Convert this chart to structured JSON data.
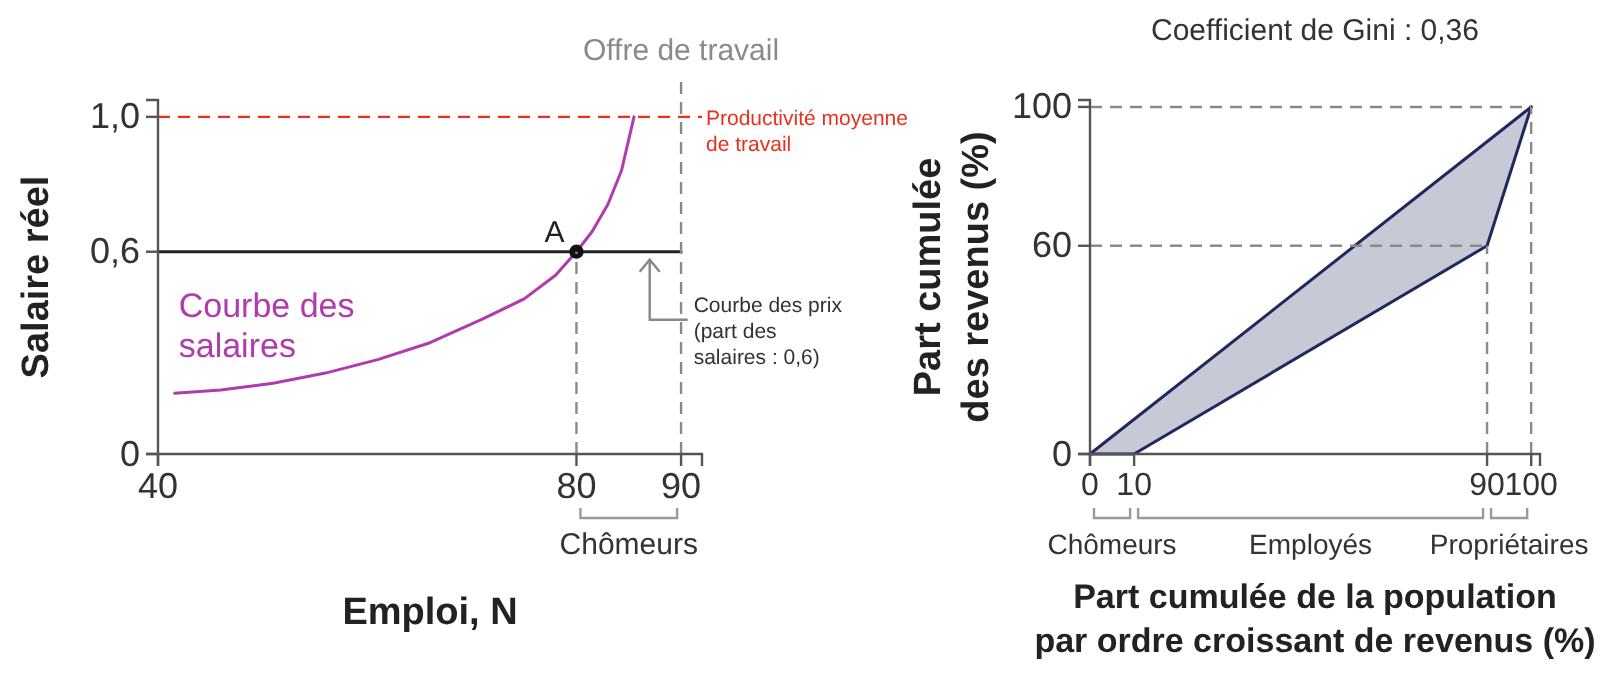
{
  "chart_data": [
    {
      "type": "line",
      "xlabel": "Emploi, N",
      "ylabel": "Salaire réel",
      "xlim": [
        40,
        92
      ],
      "ylim": [
        0,
        1.05
      ],
      "xticks": [
        40,
        80,
        90
      ],
      "yticks": [
        0,
        {
          "value": 0.6,
          "label": "0,6"
        },
        {
          "value": 1,
          "label": "1,0"
        }
      ],
      "series": [
        {
          "name": "Courbe des salaires",
          "color": "#b03aae",
          "x": [
            41.6,
            46,
            51,
            56,
            61,
            66,
            71,
            75,
            78,
            80,
            81.5,
            83,
            84.3,
            85.5
          ],
          "values": [
            0.18,
            0.19,
            0.21,
            0.24,
            0.28,
            0.33,
            0.4,
            0.46,
            0.53,
            0.6,
            0.66,
            0.74,
            0.84,
            1.0
          ]
        },
        {
          "color": "#222222",
          "x": [
            40,
            90
          ],
          "values": [
            0.6,
            0.6
          ]
        },
        {
          "name": "A",
          "type": "scatter",
          "marker": "circle",
          "color": "#111111",
          "x": [
            80
          ],
          "values": [
            0.6
          ]
        }
      ],
      "ref_lines": [
        {
          "axis": "y",
          "value": 1,
          "label": "Productivité moyenne de travail",
          "color": "#e8301f",
          "line_style": "dashed"
        },
        {
          "axis": "x",
          "value": 90,
          "label": "Offre de travail",
          "color": "#8a8a8a",
          "line_style": "dashed"
        },
        {
          "axis": "x",
          "value": 80,
          "color": "#8a8a8a",
          "line_style": "dashed"
        }
      ],
      "annotations": [
        {
          "text": "Courbe des prix (part des salaires : 0,6)",
          "x": 87,
          "y": 0.6
        },
        "Chômeurs"
      ]
    },
    {
      "type": "line",
      "title": "Coefficient de Gini : 0,36",
      "xlabel": "Part cumulée de la population par ordre croissant de revenus (%)",
      "ylabel": "Part cumulée des revenus (%)",
      "xlim": [
        0,
        102
      ],
      "ylim": [
        0,
        102
      ],
      "xticks": [
        0,
        10,
        90,
        100
      ],
      "yticks": [
        0,
        60,
        100
      ],
      "series": [
        {
          "color": "#1f2a5c",
          "x": [
            0,
            100
          ],
          "values": [
            0,
            100
          ]
        },
        {
          "color": "#1f2a5c",
          "x": [
            0,
            10,
            90,
            100
          ],
          "values": [
            0,
            0,
            60,
            100
          ],
          "lower": [
            0,
            0,
            60,
            100
          ],
          "upper": [
            0,
            10,
            90,
            100
          ]
        }
      ],
      "ref_lines": [
        {
          "axis": "y",
          "value": 60,
          "color": "#8a8a8a",
          "line_style": "dashed"
        },
        {
          "axis": "y",
          "value": 100,
          "color": "#8a8a8a",
          "line_style": "dashed"
        },
        {
          "axis": "x",
          "value": 90,
          "color": "#8a8a8a",
          "line_style": "dashed"
        },
        {
          "axis": "x",
          "value": 100,
          "color": "#8a8a8a",
          "line_style": "dashed"
        }
      ],
      "annotations": [
        "Chômeurs",
        "Employés",
        "Propriétaires"
      ]
    }
  ]
}
